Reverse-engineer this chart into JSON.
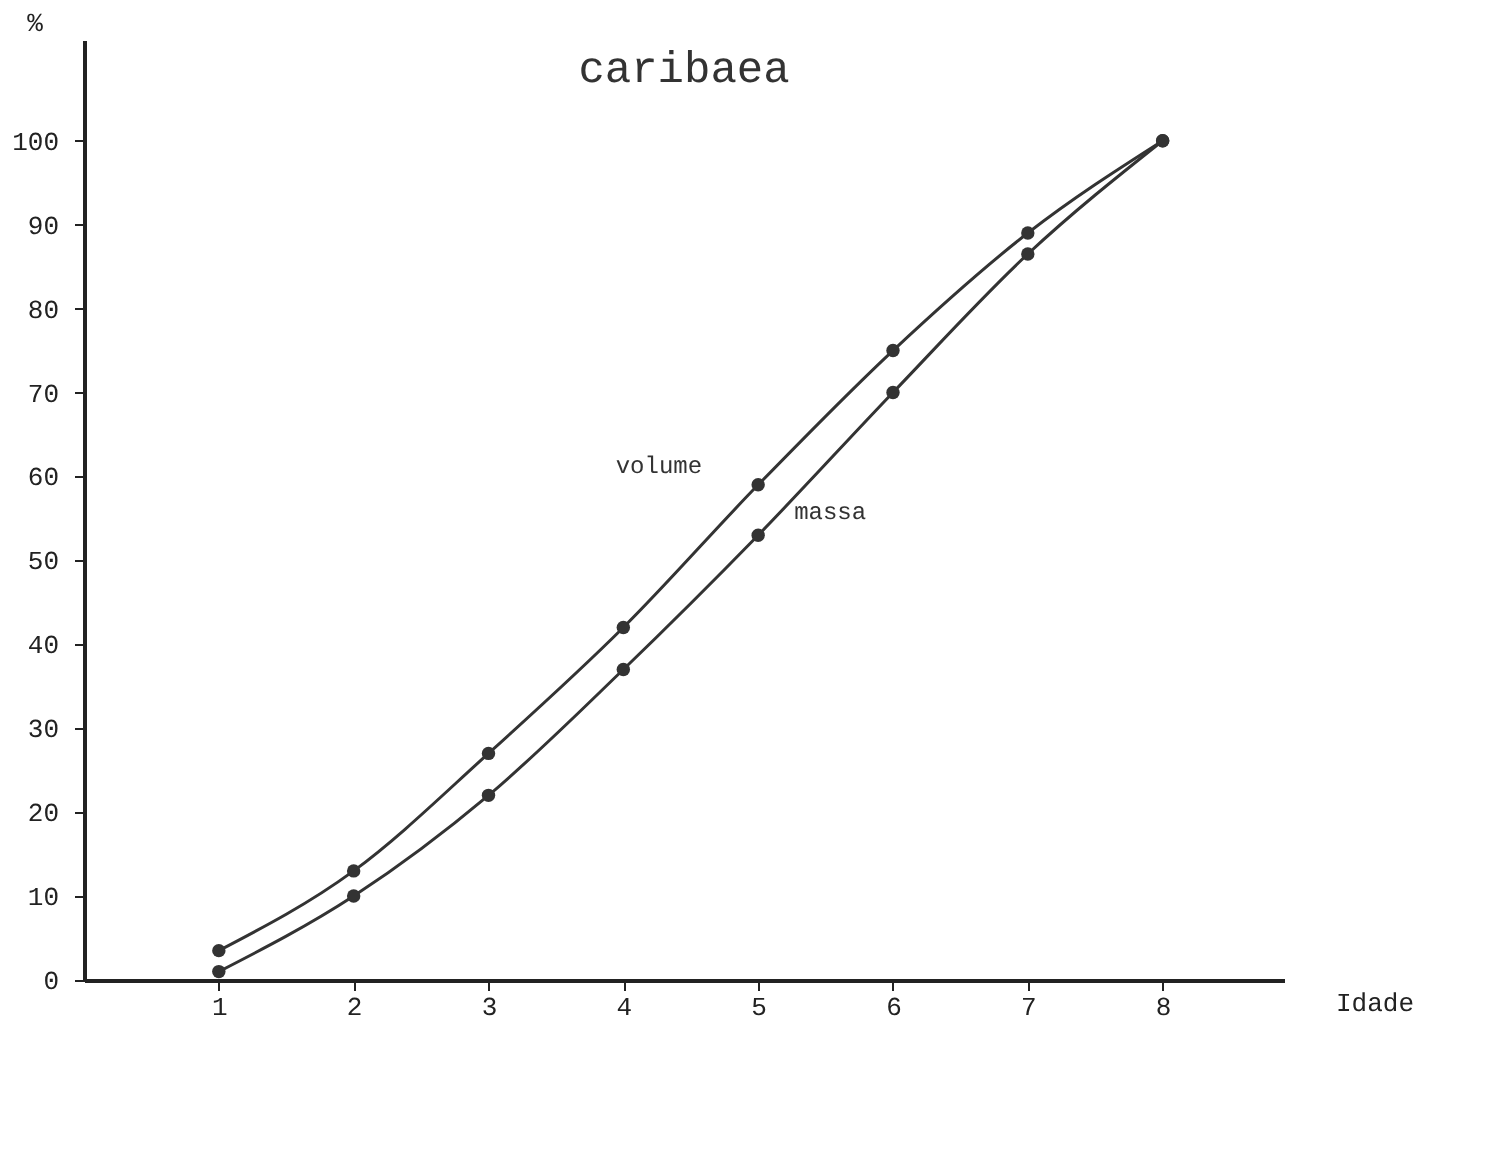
{
  "chart_data": {
    "type": "line",
    "title": "caribaea",
    "xlabel": "Idade",
    "ylabel": "%",
    "x": [
      1,
      2,
      3,
      4,
      5,
      6,
      7,
      8
    ],
    "series": [
      {
        "name": "volume",
        "color": "#333333",
        "values": [
          3.5,
          13,
          27,
          42,
          59,
          75,
          89,
          100
        ]
      },
      {
        "name": "massa",
        "color": "#333333",
        "values": [
          1,
          10,
          22,
          37,
          53,
          70,
          86.5,
          100
        ]
      }
    ],
    "xlim": [
      0,
      8.9
    ],
    "xticks": [
      1,
      2,
      3,
      4,
      5,
      6,
      7,
      8
    ],
    "ylim": [
      0,
      112
    ],
    "yticks": [
      0,
      10,
      20,
      30,
      40,
      50,
      60,
      70,
      80,
      90,
      100
    ],
    "grid": false,
    "marker": "circle",
    "line_style": "solid"
  }
}
